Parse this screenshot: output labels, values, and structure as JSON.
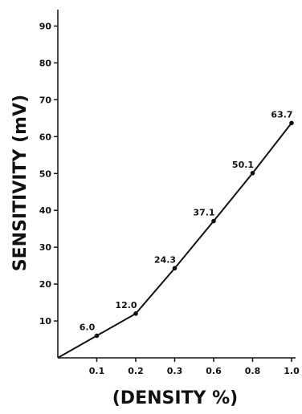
{
  "chart_data": {
    "type": "line",
    "title": "",
    "xlabel": "(DENSITY %)",
    "ylabel": "SENSITIVITY (mV)",
    "x_ticks": [
      "0.1",
      "0.2",
      "0.3",
      "0.6",
      "0.8",
      "1.0"
    ],
    "y_ticks": [
      10,
      20,
      30,
      40,
      50,
      60,
      70,
      80,
      90
    ],
    "ylim": [
      0,
      95
    ],
    "grid": false,
    "series": [
      {
        "x": [
          "0",
          "0.1",
          "0.2",
          "0.3",
          "0.6",
          "0.8",
          "1.0"
        ],
        "values": [
          0,
          6.0,
          12.0,
          24.3,
          37.1,
          50.1,
          63.7
        ],
        "data_labels": [
          "",
          "6.0",
          "12.0",
          "24.3",
          "37.1",
          "50.1",
          "63.7"
        ]
      }
    ],
    "colors": {
      "line": "#111111",
      "axis": "#111111"
    }
  }
}
